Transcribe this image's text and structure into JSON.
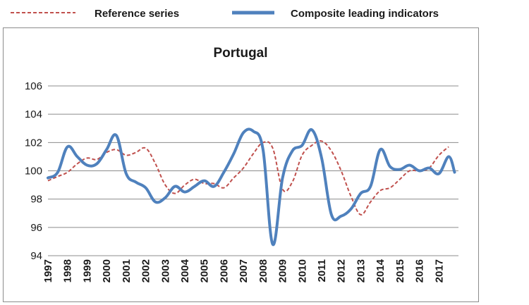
{
  "chart_data": {
    "type": "line",
    "title": "Portugal",
    "xlabel": "",
    "ylabel": "",
    "ylim": [
      94,
      106
    ],
    "yticks": [
      94,
      96,
      98,
      100,
      102,
      104,
      106
    ],
    "xticks": [
      "1997",
      "1998",
      "1999",
      "2000",
      "2001",
      "2002",
      "2003",
      "2004",
      "2005",
      "2006",
      "2007",
      "2008",
      "2009",
      "2010",
      "2011",
      "2012",
      "2013",
      "2014",
      "2015",
      "2016",
      "2017"
    ],
    "grid": true,
    "legend_position": "top",
    "x_start": 1997,
    "x_end": 2018,
    "series": [
      {
        "name": "Reference series",
        "style": "dashed",
        "color": "#c0504d",
        "x": [
          1997.0,
          1997.5,
          1998.0,
          1998.5,
          1999.0,
          1999.5,
          2000.0,
          2000.5,
          2001.0,
          2001.5,
          2002.0,
          2002.5,
          2003.0,
          2003.5,
          2004.0,
          2004.5,
          2005.0,
          2005.5,
          2006.0,
          2006.5,
          2007.0,
          2007.5,
          2008.0,
          2008.5,
          2009.0,
          2009.5,
          2010.0,
          2010.5,
          2011.0,
          2011.5,
          2012.0,
          2012.5,
          2013.0,
          2013.5,
          2014.0,
          2014.5,
          2015.0,
          2015.5,
          2016.0,
          2016.5,
          2017.0,
          2017.5
        ],
        "y": [
          99.3,
          99.6,
          99.9,
          100.5,
          100.9,
          100.8,
          101.3,
          101.5,
          101.1,
          101.3,
          101.6,
          100.5,
          99.0,
          98.4,
          99.0,
          99.4,
          99.1,
          99.1,
          98.8,
          99.5,
          100.2,
          101.2,
          102.0,
          101.6,
          98.7,
          99.2,
          101.1,
          101.8,
          102.1,
          101.4,
          100.0,
          98.2,
          96.9,
          97.8,
          98.6,
          98.8,
          99.4,
          100.0,
          100.0,
          100.2,
          101.1,
          101.7
        ]
      },
      {
        "name": "Composite leading indicators",
        "style": "solid",
        "color": "#4f81bd",
        "x": [
          1997.0,
          1997.5,
          1998.0,
          1998.5,
          1999.0,
          1999.5,
          2000.0,
          2000.5,
          2001.0,
          2001.5,
          2002.0,
          2002.5,
          2003.0,
          2003.5,
          2004.0,
          2004.5,
          2005.0,
          2005.5,
          2006.0,
          2006.5,
          2007.0,
          2007.5,
          2008.0,
          2008.5,
          2009.0,
          2009.5,
          2010.0,
          2010.5,
          2011.0,
          2011.5,
          2012.0,
          2012.5,
          2013.0,
          2013.5,
          2014.0,
          2014.5,
          2015.0,
          2015.5,
          2016.0,
          2016.5,
          2017.0,
          2017.5,
          2017.8
        ],
        "y": [
          99.5,
          99.9,
          101.7,
          101.0,
          100.4,
          100.5,
          101.5,
          102.5,
          99.8,
          99.2,
          98.8,
          97.8,
          98.1,
          98.9,
          98.5,
          98.9,
          99.3,
          98.9,
          99.9,
          101.2,
          102.7,
          102.8,
          101.5,
          94.8,
          99.5,
          101.4,
          101.8,
          102.9,
          100.9,
          96.9,
          96.8,
          97.3,
          98.4,
          98.9,
          101.5,
          100.3,
          100.1,
          100.4,
          100.0,
          100.2,
          99.8,
          101.0,
          99.9
        ]
      }
    ]
  }
}
